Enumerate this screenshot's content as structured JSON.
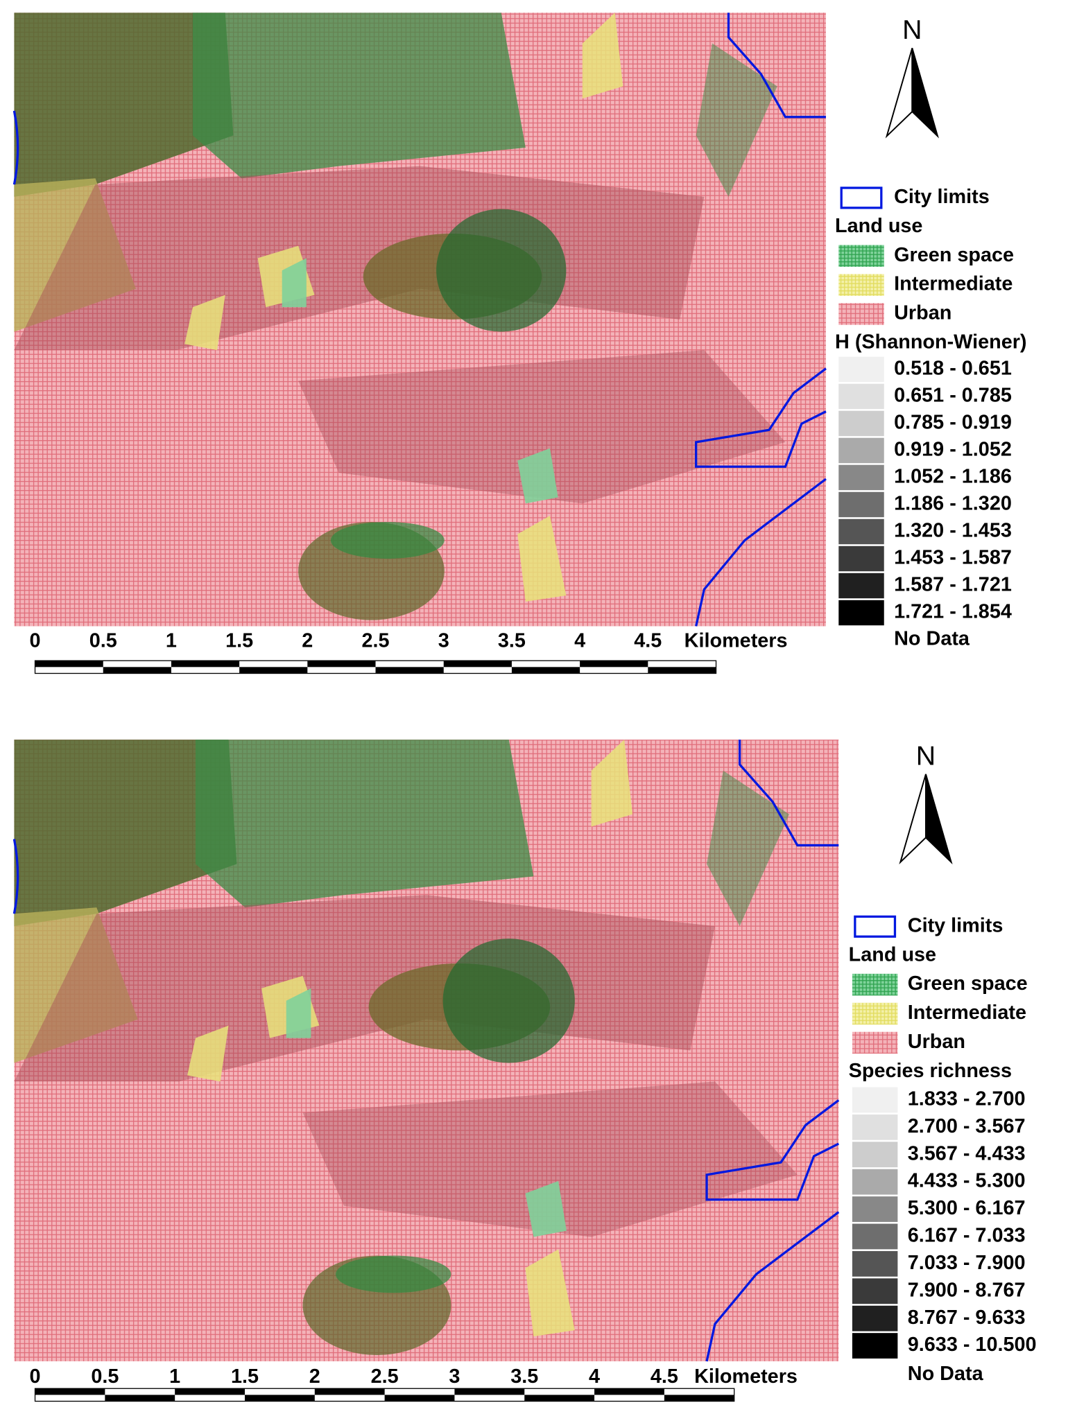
{
  "panels": [
    {
      "north": "N",
      "scale": {
        "labels": [
          "0",
          "0.5",
          "1",
          "1.5",
          "2",
          "2.5",
          "3",
          "3.5",
          "4",
          "4.5"
        ],
        "unit": "Kilometers"
      },
      "legend": {
        "city_limits": "City limits",
        "land_use_title": "Land use",
        "land_use": [
          "Green space",
          "Intermediate",
          "Urban"
        ],
        "index_title": "H (Shannon-Wiener)",
        "classes": [
          "0.518 - 0.651",
          "0.651 - 0.785",
          "0.785 - 0.919",
          "0.919 - 1.052",
          "1.052 - 1.186",
          "1.186 - 1.320",
          "1.320 - 1.453",
          "1.453 - 1.587",
          "1.587 - 1.721",
          "1.721 - 1.854"
        ],
        "no_data": "No Data"
      }
    },
    {
      "north": "N",
      "scale": {
        "labels": [
          "0",
          "0.5",
          "1",
          "1.5",
          "2",
          "2.5",
          "3",
          "3.5",
          "4",
          "4.5"
        ],
        "unit": "Kilometers"
      },
      "legend": {
        "city_limits": "City limits",
        "land_use_title": "Land use",
        "land_use": [
          "Green space",
          "Intermediate",
          "Urban"
        ],
        "index_title": "Species richness",
        "classes": [
          "1.833 - 2.700",
          "2.700 - 3.567",
          "3.567 - 4.433",
          "4.433 - 5.300",
          "5.300 - 6.167",
          "6.167 - 7.033",
          "7.033 - 7.900",
          "7.900 - 8.767",
          "8.767 - 9.633",
          "9.633 - 10.500"
        ],
        "no_data": "No Data"
      }
    }
  ]
}
